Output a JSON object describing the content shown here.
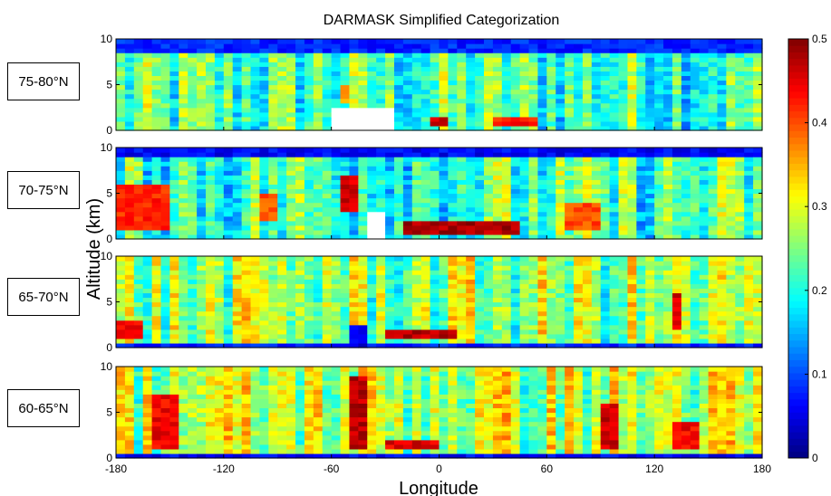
{
  "chart_data": {
    "type": "heatmap",
    "title": "DARMASK Simplified Categorization",
    "xlabel": "Longitude",
    "ylabel": "Altitude (km)",
    "xlim": [
      -180,
      180
    ],
    "ylim": [
      0,
      10
    ],
    "x_ticks": [
      "-180",
      "-120",
      "-60",
      "0",
      "60",
      "120",
      "180"
    ],
    "y_ticks": [
      "0",
      "5",
      "10"
    ],
    "colorbar": {
      "range": [
        0,
        0.5
      ],
      "ticks": [
        "0",
        "0.1",
        "0.2",
        "0.3",
        "0.4",
        "0.5"
      ],
      "colormap": "jet",
      "colors": [
        "#00007f",
        "#0000ff",
        "#007fff",
        "#00ffff",
        "#7fff7f",
        "#ffff00",
        "#ff7f00",
        "#ff0000",
        "#7f0000"
      ]
    },
    "panels": [
      {
        "label": "75-80°N",
        "features": [
          {
            "lon_range": [
              -180,
              180
            ],
            "alt_range": [
              0,
              10
            ],
            "value": 0.22,
            "note": "background"
          },
          {
            "lon_range": [
              -180,
              180
            ],
            "alt_range": [
              8.5,
              10
            ],
            "value": 0.08
          },
          {
            "lon_range": [
              -60,
              -25
            ],
            "alt_range": [
              0,
              2.5
            ],
            "value": null,
            "note": "no data (terrain)"
          },
          {
            "lon_range": [
              -5,
              5
            ],
            "alt_range": [
              0.5,
              1.5
            ],
            "value": 0.47
          },
          {
            "lon_range": [
              28,
              55
            ],
            "alt_range": [
              0.5,
              1.5
            ],
            "value": 0.43
          },
          {
            "lon_range": [
              -55,
              -48
            ],
            "alt_range": [
              3,
              5
            ],
            "value": 0.35
          }
        ]
      },
      {
        "label": "70-75°N",
        "features": [
          {
            "lon_range": [
              -180,
              180
            ],
            "alt_range": [
              0,
              10
            ],
            "value": 0.22,
            "note": "background"
          },
          {
            "lon_range": [
              -180,
              180
            ],
            "alt_range": [
              9,
              10
            ],
            "value": 0.06
          },
          {
            "lon_range": [
              -42,
              -30
            ],
            "alt_range": [
              0,
              3
            ],
            "value": null,
            "note": "no data (terrain)"
          },
          {
            "lon_range": [
              -18,
              45
            ],
            "alt_range": [
              0.5,
              2
            ],
            "value": 0.48
          },
          {
            "lon_range": [
              -180,
              -150
            ],
            "alt_range": [
              1,
              6
            ],
            "value": 0.42
          },
          {
            "lon_range": [
              -100,
              -92
            ],
            "alt_range": [
              2,
              5
            ],
            "value": 0.4
          },
          {
            "lon_range": [
              -55,
              -45
            ],
            "alt_range": [
              3,
              7
            ],
            "value": 0.46
          },
          {
            "lon_range": [
              70,
              88
            ],
            "alt_range": [
              1,
              4
            ],
            "value": 0.4
          }
        ]
      },
      {
        "label": "65-70°N",
        "features": [
          {
            "lon_range": [
              -180,
              180
            ],
            "alt_range": [
              0,
              10
            ],
            "value": 0.26,
            "note": "background"
          },
          {
            "lon_range": [
              -180,
              180
            ],
            "alt_range": [
              0,
              0.6
            ],
            "value": 0.08
          },
          {
            "lon_range": [
              -180,
              -165
            ],
            "alt_range": [
              1,
              3
            ],
            "value": 0.44
          },
          {
            "lon_range": [
              -30,
              10
            ],
            "alt_range": [
              1,
              2
            ],
            "value": 0.47
          },
          {
            "lon_range": [
              -52,
              -40
            ],
            "alt_range": [
              0,
              2.5
            ],
            "value": 0.05
          },
          {
            "lon_range": [
              128,
              134
            ],
            "alt_range": [
              2,
              6
            ],
            "value": 0.45
          }
        ]
      },
      {
        "label": "60-65°N",
        "features": [
          {
            "lon_range": [
              -180,
              180
            ],
            "alt_range": [
              0,
              10
            ],
            "value": 0.28,
            "note": "background"
          },
          {
            "lon_range": [
              -180,
              180
            ],
            "alt_range": [
              0,
              0.5
            ],
            "value": 0.06
          },
          {
            "lon_range": [
              -160,
              -145
            ],
            "alt_range": [
              1,
              7
            ],
            "value": 0.44
          },
          {
            "lon_range": [
              -48,
              -40
            ],
            "alt_range": [
              1,
              9
            ],
            "value": 0.47
          },
          {
            "lon_range": [
              -30,
              0
            ],
            "alt_range": [
              1,
              2
            ],
            "value": 0.45
          },
          {
            "lon_range": [
              92,
              100
            ],
            "alt_range": [
              1,
              6
            ],
            "value": 0.46
          },
          {
            "lon_range": [
              130,
              145
            ],
            "alt_range": [
              1,
              4
            ],
            "value": 0.44
          }
        ]
      }
    ]
  }
}
